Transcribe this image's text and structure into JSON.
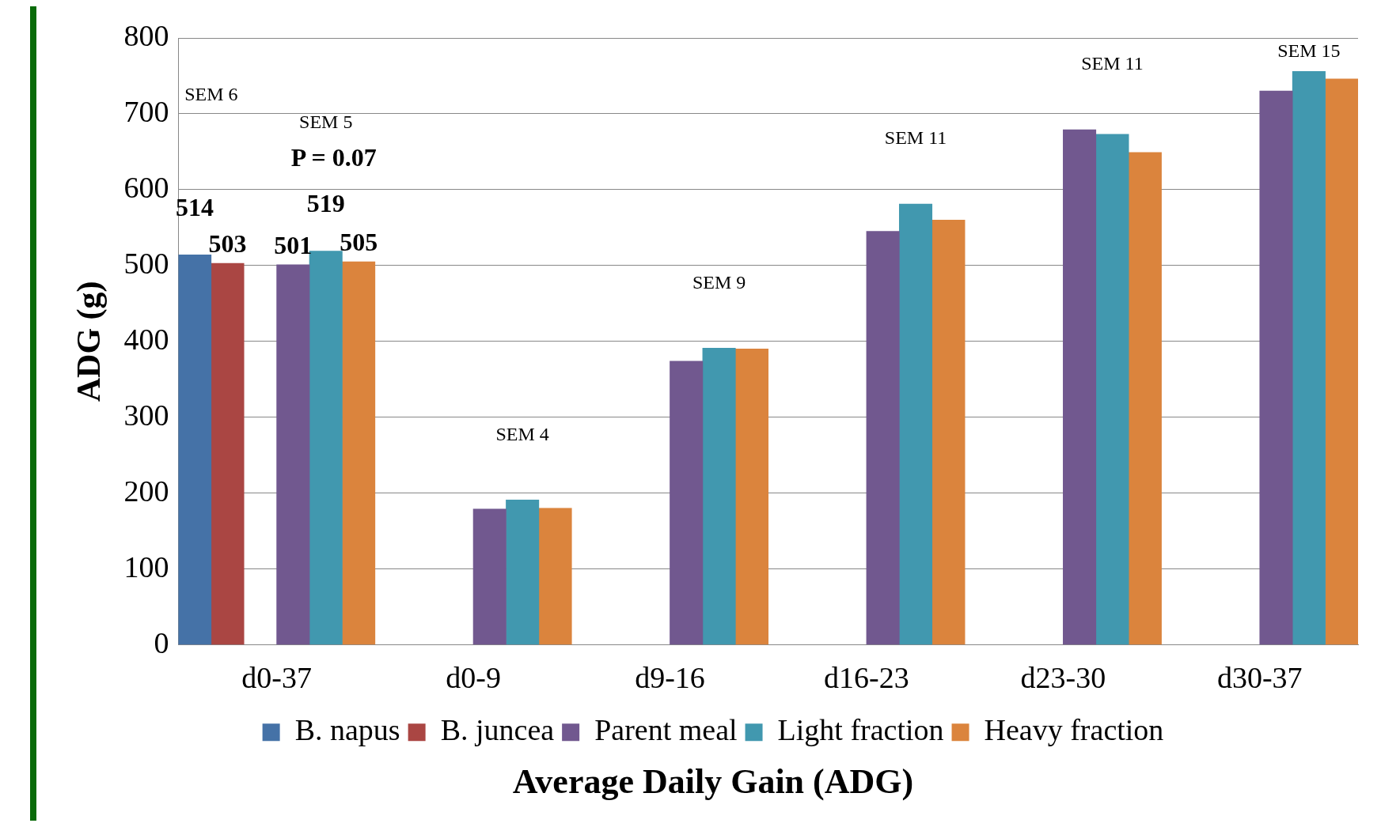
{
  "chart_data": {
    "type": "bar",
    "title": "Average Daily Gain (ADG)",
    "ylabel": "ADG (g)",
    "categories": [
      "d0-37",
      "d0-9",
      "d9-16",
      "d16-23",
      "d23-30",
      "d30-37"
    ],
    "series": [
      {
        "name": "B. napus",
        "color": "#4572a7",
        "values": [
          514,
          null,
          null,
          null,
          null,
          null
        ],
        "value_labels": [
          "514",
          null,
          null,
          null,
          null,
          null
        ]
      },
      {
        "name": "B. juncea",
        "color": "#aa4643",
        "values": [
          503,
          null,
          null,
          null,
          null,
          null
        ],
        "value_labels": [
          "503",
          null,
          null,
          null,
          null,
          null
        ]
      },
      {
        "name": "Parent meal",
        "color": "#71588f",
        "values": [
          501,
          179,
          374,
          545,
          679,
          730
        ],
        "value_labels": [
          "501",
          null,
          null,
          null,
          null,
          null
        ]
      },
      {
        "name": "Light fraction",
        "color": "#4198af",
        "values": [
          519,
          191,
          391,
          581,
          673,
          756
        ],
        "value_labels": [
          "519",
          null,
          null,
          null,
          null,
          null
        ]
      },
      {
        "name": "Heavy fraction",
        "color": "#db843d",
        "values": [
          505,
          180,
          390,
          560,
          649,
          746
        ],
        "value_labels": [
          "505",
          null,
          null,
          null,
          null,
          null
        ]
      }
    ],
    "ylim": [
      0,
      800
    ],
    "yticks": [
      0,
      100,
      200,
      300,
      400,
      500,
      600,
      700,
      800
    ],
    "grid": "y",
    "legend": "bottom",
    "annotations": [
      "SEM 6",
      "SEM 5",
      "SEM 4",
      "SEM 9",
      "SEM 11",
      "SEM 11",
      "SEM 15",
      "P = 0.07"
    ]
  }
}
